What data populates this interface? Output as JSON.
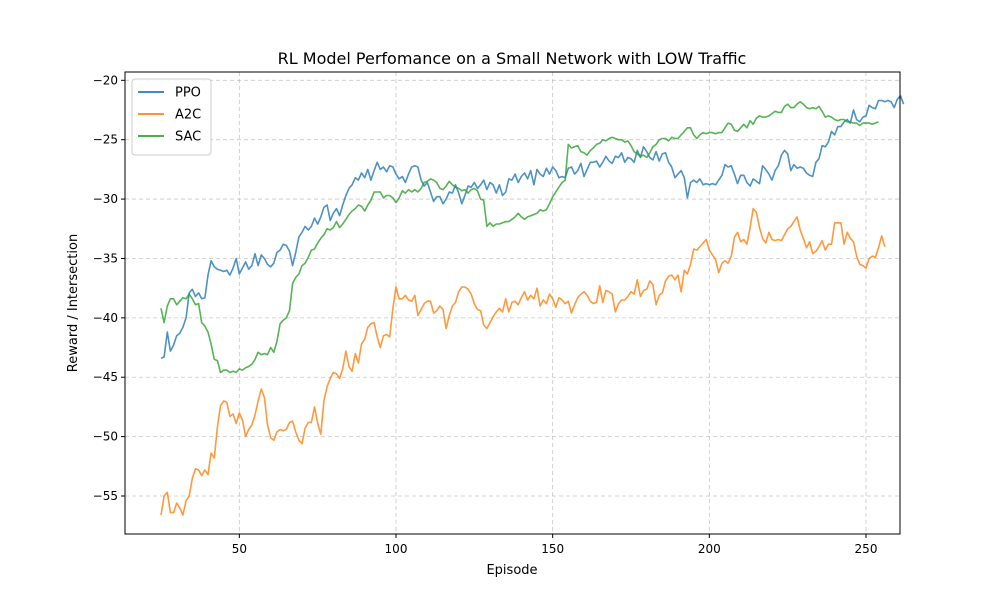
{
  "chart_data": {
    "type": "line",
    "title": "RL Model Perfomance on a Small Network with LOW Traffic",
    "xlabel": "Episode",
    "ylabel": "Reward / Intersection",
    "xlim": [
      25,
      250
    ],
    "ylim": [
      -58.2,
      -19.3
    ],
    "xticks": [
      50,
      100,
      150,
      200,
      250
    ],
    "yticks": [
      -55,
      -50,
      -45,
      -40,
      -35,
      -30,
      -25,
      -20
    ],
    "grid": true,
    "legend_position": "top-left",
    "x_start": 25,
    "x_step": 1,
    "series": [
      {
        "name": "PPO",
        "color": "#1f77b4",
        "values": [
          -43.4,
          -43.3,
          -41.2,
          -42.8,
          -42.3,
          -41.5,
          -41.3,
          -40.8,
          -40.0,
          -37.9,
          -37.6,
          -38.2,
          -37.9,
          -38.4,
          -38.3,
          -36.4,
          -35.2,
          -35.7,
          -35.9,
          -36.0,
          -36.1,
          -36.0,
          -36.4,
          -35.8,
          -35.0,
          -36.3,
          -35.8,
          -35.3,
          -35.9,
          -35.6,
          -34.6,
          -35.6,
          -34.7,
          -35.0,
          -35.5,
          -35.7,
          -35.4,
          -34.5,
          -34.3,
          -33.8,
          -33.9,
          -34.4,
          -35.6,
          -34.5,
          -33.2,
          -32.8,
          -32.3,
          -32.6,
          -32.3,
          -31.6,
          -32.1,
          -31.5,
          -30.7,
          -30.5,
          -31.8,
          -31.2,
          -30.8,
          -31.4,
          -30.5,
          -29.7,
          -29.1,
          -28.8,
          -28.2,
          -28.4,
          -27.8,
          -28.2,
          -27.5,
          -28.4,
          -27.6,
          -26.9,
          -27.5,
          -27.3,
          -27.7,
          -27.2,
          -27.3,
          -27.9,
          -28.3,
          -28.1,
          -28.6,
          -27.9,
          -27.3,
          -27.2,
          -27.3,
          -28.4,
          -28.9,
          -28.6,
          -29.4,
          -30.2,
          -29.8,
          -29.8,
          -30.4,
          -30.0,
          -29.4,
          -29.5,
          -28.8,
          -29.5,
          -30.4,
          -29.7,
          -28.9,
          -29.0,
          -28.6,
          -29.1,
          -28.8,
          -28.4,
          -29.2,
          -28.6,
          -28.8,
          -29.5,
          -28.8,
          -29.7,
          -29.4,
          -28.3,
          -28.4,
          -27.9,
          -28.6,
          -28.1,
          -27.8,
          -28.3,
          -27.6,
          -28.8,
          -27.5,
          -27.9,
          -28.1,
          -27.4,
          -27.9,
          -27.3,
          -27.6,
          -28.2,
          -28.1,
          -28.2,
          -27.4,
          -27.3,
          -27.9,
          -27.6,
          -27.0,
          -28.1,
          -27.5,
          -26.9,
          -26.9,
          -26.8,
          -27.3,
          -26.9,
          -26.4,
          -26.8,
          -27.0,
          -26.4,
          -26.5,
          -26.1,
          -26.9,
          -26.5,
          -26.6,
          -26.9,
          -25.9,
          -26.5,
          -25.6,
          -26.0,
          -26.5,
          -26.7,
          -26.0,
          -26.8,
          -26.2,
          -26.1,
          -26.9,
          -27.3,
          -28.2,
          -27.9,
          -27.6,
          -28.2,
          -29.9,
          -28.6,
          -28.4,
          -28.6,
          -28.3,
          -28.8,
          -28.7,
          -28.8,
          -28.7,
          -28.8,
          -28.4,
          -28.0,
          -27.1,
          -27.3,
          -27.2,
          -27.9,
          -28.7,
          -28.0,
          -28.0,
          -28.6,
          -28.9,
          -28.3,
          -28.5,
          -28.7,
          -27.2,
          -27.5,
          -27.9,
          -28.4,
          -27.6,
          -27.2,
          -26.3,
          -25.9,
          -26.2,
          -27.6,
          -27.1,
          -27.4,
          -27.3,
          -27.4,
          -27.8,
          -28.0,
          -28.1,
          -26.9,
          -26.6,
          -25.5,
          -25.6,
          -25.2,
          -24.3,
          -24.6,
          -23.9,
          -23.9,
          -23.5,
          -23.3,
          -23.6,
          -22.5,
          -23.3,
          -23.5,
          -23.1,
          -23.0,
          -22.1,
          -22.3,
          -22.4,
          -21.7,
          -21.7,
          -21.8,
          -21.7,
          -21.8,
          -22.3,
          -21.6,
          -21.3,
          -22.0
        ]
      },
      {
        "name": "A2C",
        "color": "#ff7f0e",
        "values": [
          -56.6,
          -55.0,
          -54.7,
          -56.4,
          -56.4,
          -55.6,
          -56.0,
          -56.6,
          -55.4,
          -55.0,
          -53.5,
          -52.7,
          -52.8,
          -53.3,
          -52.8,
          -53.2,
          -51.4,
          -51.8,
          -49.2,
          -47.4,
          -47.0,
          -47.1,
          -48.3,
          -48.1,
          -48.9,
          -48.0,
          -48.6,
          -50.0,
          -49.4,
          -49.0,
          -48.2,
          -47.0,
          -46.0,
          -46.7,
          -49.0,
          -50.1,
          -50.3,
          -49.6,
          -49.4,
          -49.5,
          -49.4,
          -48.8,
          -48.7,
          -49.6,
          -50.3,
          -50.6,
          -49.3,
          -48.8,
          -48.8,
          -47.5,
          -48.9,
          -49.8,
          -47.0,
          -45.8,
          -45.1,
          -44.6,
          -44.7,
          -45.1,
          -44.3,
          -42.8,
          -44.1,
          -44.5,
          -43.0,
          -43.8,
          -42.2,
          -41.8,
          -40.8,
          -40.5,
          -40.4,
          -41.6,
          -42.5,
          -41.5,
          -41.4,
          -41.6,
          -39.2,
          -37.4,
          -38.4,
          -38.4,
          -38.1,
          -38.5,
          -38.6,
          -38.1,
          -39.8,
          -39.3,
          -38.8,
          -38.6,
          -38.6,
          -39.6,
          -39.4,
          -39.0,
          -39.3,
          -40.9,
          -39.8,
          -39.0,
          -38.7,
          -37.8,
          -37.4,
          -37.4,
          -37.6,
          -38.0,
          -38.8,
          -39.3,
          -39.4,
          -40.6,
          -40.9,
          -40.4,
          -39.9,
          -39.5,
          -39.2,
          -39.5,
          -38.4,
          -39.5,
          -38.7,
          -38.6,
          -38.9,
          -38.3,
          -37.8,
          -38.5,
          -38.1,
          -38.4,
          -37.5,
          -39.0,
          -38.5,
          -38.8,
          -38.0,
          -38.4,
          -39.1,
          -38.3,
          -38.5,
          -38.8,
          -38.6,
          -39.6,
          -38.9,
          -38.3,
          -38.0,
          -37.8,
          -38.1,
          -38.6,
          -38.8,
          -38.7,
          -37.3,
          -38.7,
          -37.7,
          -37.8,
          -38.0,
          -39.5,
          -38.8,
          -38.5,
          -38.5,
          -38.2,
          -37.8,
          -38.0,
          -36.8,
          -38.2,
          -37.7,
          -37.6,
          -36.9,
          -37.2,
          -38.9,
          -38.1,
          -37.9,
          -36.9,
          -36.5,
          -36.4,
          -36.8,
          -36.4,
          -37.8,
          -36.0,
          -36.3,
          -35.5,
          -34.2,
          -34.3,
          -34.0,
          -33.7,
          -33.4,
          -34.3,
          -34.7,
          -35.1,
          -36.2,
          -35.4,
          -35.2,
          -35.4,
          -34.8,
          -33.2,
          -32.8,
          -33.6,
          -33.4,
          -33.8,
          -32.4,
          -30.8,
          -31.1,
          -32.4,
          -33.3,
          -33.7,
          -32.8,
          -33.4,
          -33.5,
          -33.4,
          -33.5,
          -33.0,
          -32.5,
          -32.3,
          -31.9,
          -31.5,
          -32.6,
          -33.3,
          -34.1,
          -33.6,
          -34.6,
          -34.4,
          -34.0,
          -33.5,
          -34.3,
          -33.8,
          -33.8,
          -32.0,
          -32.0,
          -32.0,
          -33.8,
          -32.8,
          -33.3,
          -33.6,
          -34.8,
          -35.5,
          -35.6,
          -35.8,
          -35.0,
          -34.8,
          -34.9,
          -34.1,
          -33.1,
          -34.0
        ]
      },
      {
        "name": "SAC",
        "color": "#2ca02c",
        "values": [
          -39.2,
          -40.4,
          -39.0,
          -38.4,
          -38.4,
          -38.9,
          -38.6,
          -38.3,
          -38.4,
          -38.0,
          -38.4,
          -38.9,
          -38.8,
          -40.4,
          -40.7,
          -41.2,
          -42.2,
          -43.5,
          -43.6,
          -44.6,
          -44.4,
          -44.4,
          -44.6,
          -44.5,
          -44.6,
          -44.3,
          -44.4,
          -44.2,
          -44.1,
          -43.9,
          -43.5,
          -42.9,
          -43.1,
          -43.0,
          -43.1,
          -42.5,
          -42.9,
          -42.0,
          -40.5,
          -40.2,
          -40.0,
          -39.4,
          -37.1,
          -36.6,
          -36.3,
          -35.6,
          -35.4,
          -34.9,
          -34.3,
          -34.2,
          -33.7,
          -33.3,
          -33.0,
          -32.5,
          -32.6,
          -32.4,
          -31.9,
          -32.4,
          -32.1,
          -31.7,
          -31.3,
          -31.0,
          -30.8,
          -30.5,
          -30.6,
          -31.0,
          -30.5,
          -30.1,
          -29.4,
          -29.4,
          -29.4,
          -29.9,
          -29.7,
          -29.7,
          -29.9,
          -30.3,
          -29.9,
          -29.3,
          -29.5,
          -29.2,
          -29.4,
          -29.2,
          -29.4,
          -29.1,
          -28.6,
          -28.5,
          -28.3,
          -28.4,
          -28.6,
          -29.1,
          -29.2,
          -28.9,
          -28.5,
          -28.8,
          -29.0,
          -29.1,
          -29.3,
          -29.2,
          -29.5,
          -29.2,
          -29.1,
          -29.3,
          -30.0,
          -30.1,
          -32.3,
          -32.0,
          -32.3,
          -32.1,
          -32.1,
          -32.0,
          -31.9,
          -31.9,
          -31.7,
          -31.5,
          -31.2,
          -31.5,
          -31.7,
          -31.5,
          -31.4,
          -31.3,
          -31.2,
          -30.9,
          -31.0,
          -30.9,
          -30.4,
          -29.8,
          -29.4,
          -29.0,
          -28.6,
          -28.4,
          -25.4,
          -25.7,
          -25.6,
          -25.5,
          -26.0,
          -26.1,
          -26.3,
          -25.9,
          -25.7,
          -25.4,
          -25.3,
          -25.0,
          -25.1,
          -24.9,
          -24.8,
          -24.9,
          -25.0,
          -25.0,
          -25.2,
          -25.1,
          -25.5,
          -26.0,
          -26.2,
          -26.4,
          -26.3,
          -26.5,
          -26.1,
          -25.6,
          -25.4,
          -25.0,
          -24.9,
          -24.9,
          -25.1,
          -24.8,
          -24.9,
          -24.9,
          -24.6,
          -24.3,
          -24.0,
          -24.0,
          -24.6,
          -24.9,
          -24.6,
          -24.4,
          -24.5,
          -24.4,
          -24.4,
          -24.5,
          -24.4,
          -24.4,
          -24.0,
          -23.6,
          -23.7,
          -24.2,
          -24.3,
          -24.0,
          -23.7,
          -24.0,
          -23.4,
          -23.7,
          -23.2,
          -23.0,
          -23.1,
          -23.1,
          -23.0,
          -22.8,
          -22.6,
          -22.7,
          -22.7,
          -22.2,
          -22.0,
          -22.3,
          -22.3,
          -22.0,
          -21.8,
          -22.0,
          -22.3,
          -22.4,
          -22.3,
          -22.4,
          -22.2,
          -22.6,
          -23.1,
          -23.0,
          -23.1,
          -23.3,
          -23.4,
          -23.3,
          -23.3,
          -23.5,
          -23.5,
          -23.6,
          -23.6,
          -23.8,
          -23.6,
          -23.6,
          -23.6,
          -23.7,
          -23.6,
          -23.5
        ]
      }
    ]
  }
}
